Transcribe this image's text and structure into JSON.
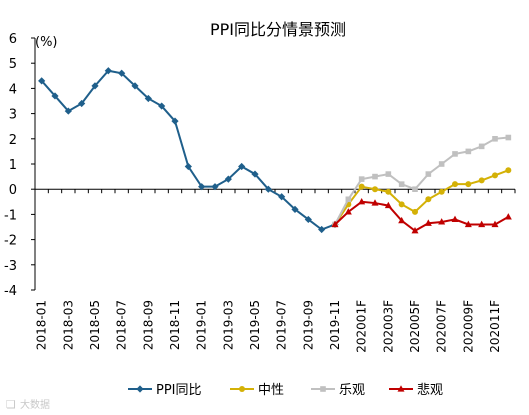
{
  "chart_data": {
    "type": "line",
    "title": "PPI同比分情景预测",
    "ylabel": "(%)",
    "xlabel": "",
    "ylim": [
      -4,
      6
    ],
    "yticks": [
      6,
      5,
      4,
      3,
      2,
      1,
      0,
      -1,
      -2,
      -3,
      -4
    ],
    "grid": false,
    "legend_position": "bottom",
    "x": [
      "2018-01",
      "2018-02",
      "2018-03",
      "2018-04",
      "2018-05",
      "2018-06",
      "2018-07",
      "2018-08",
      "2018-09",
      "2018-10",
      "2018-11",
      "2018-12",
      "2019-01",
      "2019-02",
      "2019-03",
      "2019-04",
      "2019-05",
      "2019-06",
      "2019-07",
      "2019-08",
      "2019-09",
      "2019-10",
      "2019-11",
      "2019-12",
      "202001F",
      "202002F",
      "202003F",
      "202004F",
      "202005F",
      "202006F",
      "202007F",
      "202008F",
      "202009F",
      "202010F",
      "202011F",
      "202012F"
    ],
    "xtick_labels": [
      "2018-01",
      "",
      "2018-03",
      "",
      "2018-05",
      "",
      "2018-07",
      "",
      "2018-09",
      "",
      "2018-11",
      "",
      "2019-01",
      "",
      "2019-03",
      "",
      "2019-05",
      "",
      "2019-07",
      "",
      "2019-09",
      "",
      "2019-11",
      "",
      "202001F",
      "",
      "202003F",
      "",
      "202005F",
      "",
      "202007F",
      "",
      "202009F",
      "",
      "202011F",
      ""
    ],
    "series": [
      {
        "name": "PPI同比",
        "color": "#1f5f8b",
        "marker": "diamond",
        "values": [
          4.3,
          3.7,
          3.1,
          3.4,
          4.1,
          4.7,
          4.6,
          4.1,
          3.6,
          3.3,
          2.7,
          0.9,
          0.1,
          0.1,
          0.4,
          0.9,
          0.6,
          0.0,
          -0.3,
          -0.8,
          -1.2,
          -1.6,
          -1.4,
          null,
          null,
          null,
          null,
          null,
          null,
          null,
          null,
          null,
          null,
          null,
          null,
          null
        ]
      },
      {
        "name": "中性",
        "color": "#d4b106",
        "marker": "circle",
        "values": [
          null,
          null,
          null,
          null,
          null,
          null,
          null,
          null,
          null,
          null,
          null,
          null,
          null,
          null,
          null,
          null,
          null,
          null,
          null,
          null,
          null,
          null,
          -1.4,
          -0.6,
          0.1,
          0.0,
          -0.1,
          -0.6,
          -0.9,
          -0.4,
          -0.1,
          0.2,
          0.2,
          0.35,
          0.55,
          0.75
        ]
      },
      {
        "name": "乐观",
        "color": "#c0c0c0",
        "marker": "square",
        "values": [
          null,
          null,
          null,
          null,
          null,
          null,
          null,
          null,
          null,
          null,
          null,
          null,
          null,
          null,
          null,
          null,
          null,
          null,
          null,
          null,
          null,
          null,
          -1.4,
          -0.4,
          0.4,
          0.5,
          0.6,
          0.2,
          0.0,
          0.6,
          1.0,
          1.4,
          1.5,
          1.7,
          2.0,
          2.05
        ]
      },
      {
        "name": "悲观",
        "color": "#c00000",
        "marker": "triangle",
        "values": [
          null,
          null,
          null,
          null,
          null,
          null,
          null,
          null,
          null,
          null,
          null,
          null,
          null,
          null,
          null,
          null,
          null,
          null,
          null,
          null,
          null,
          null,
          -1.4,
          -0.9,
          -0.5,
          -0.55,
          -0.65,
          -1.25,
          -1.65,
          -1.35,
          -1.3,
          -1.2,
          -1.4,
          -1.4,
          -1.4,
          -1.1
        ]
      }
    ]
  },
  "watermark": "大数据"
}
